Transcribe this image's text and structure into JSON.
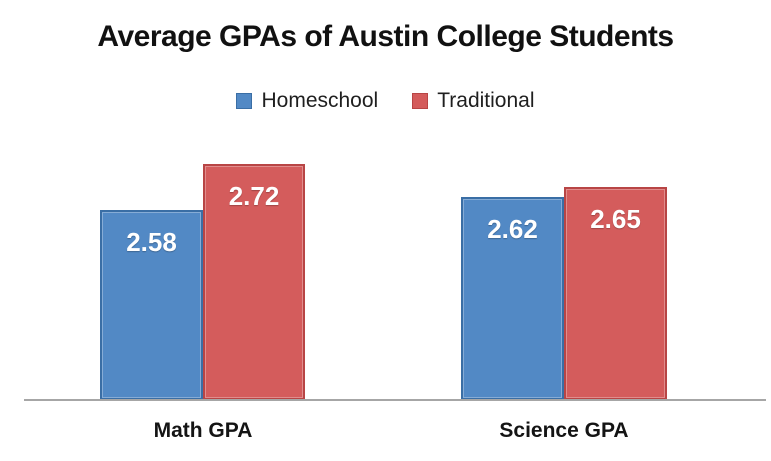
{
  "chart_data": {
    "type": "bar",
    "title": "Average GPAs of Austin College Students",
    "categories": [
      "Math GPA",
      "Science GPA"
    ],
    "series": [
      {
        "name": "Homeschool",
        "fill": "#5289C5",
        "border": "#3A6EA5",
        "values": [
          2.58,
          2.62
        ]
      },
      {
        "name": "Traditional",
        "fill": "#D45C5C",
        "border": "#B84545",
        "values": [
          2.72,
          2.65
        ]
      }
    ],
    "value_labels": {
      "visible": true,
      "color": "#FFFFFF",
      "position": "inside-end"
    },
    "axis": {
      "y_axis_visible": false,
      "y_min_implied": 2.0,
      "x_axis_line_color": "#A6A6A6",
      "grid": false
    },
    "legend_position": "top",
    "xlabel": "",
    "ylabel": ""
  }
}
